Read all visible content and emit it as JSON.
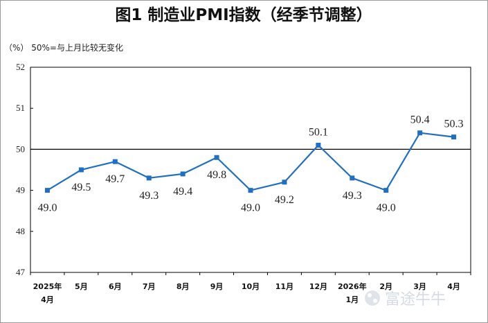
{
  "chart_data": {
    "type": "line",
    "title": "图1  制造业PMI指数（经季节调整）",
    "subtitle": "（%）  50%=与上月比较无变化",
    "categories": [
      [
        "2025年",
        "4月"
      ],
      [
        "5月"
      ],
      [
        "6月"
      ],
      [
        "7月"
      ],
      [
        "8月"
      ],
      [
        "9月"
      ],
      [
        "10月"
      ],
      [
        "11月"
      ],
      [
        "12月"
      ],
      [
        "2026年",
        "1月"
      ],
      [
        "2月"
      ],
      [
        "3月"
      ],
      [
        "4月"
      ]
    ],
    "values": [
      49.0,
      49.5,
      49.7,
      49.3,
      49.4,
      49.8,
      49.0,
      49.2,
      50.1,
      49.3,
      49.0,
      50.4,
      50.3
    ],
    "data_labels": [
      "49.0",
      "49.5",
      "49.7",
      "49.3",
      "49.4",
      "49.8",
      "49.0",
      "49.2",
      "50.1",
      "49.3",
      "49.0",
      "50.4",
      "50.3"
    ],
    "label_positions": [
      "below",
      "below",
      "below",
      "below",
      "below",
      "below",
      "below",
      "below",
      "above",
      "below",
      "below",
      "above",
      "above"
    ],
    "y_ticks": [
      "52",
      "51",
      "50",
      "49",
      "48",
      "47"
    ],
    "ylim": [
      47,
      52
    ],
    "reference_line": 50,
    "xlabel": "",
    "ylabel": "",
    "grid": false,
    "colors": {
      "line": "#1f6fc5",
      "marker": "#1f6fc5",
      "reference": "#000000",
      "axis": "#000000"
    }
  },
  "watermark": {
    "text": "富途牛牛",
    "icon": "futu-logo-icon"
  }
}
